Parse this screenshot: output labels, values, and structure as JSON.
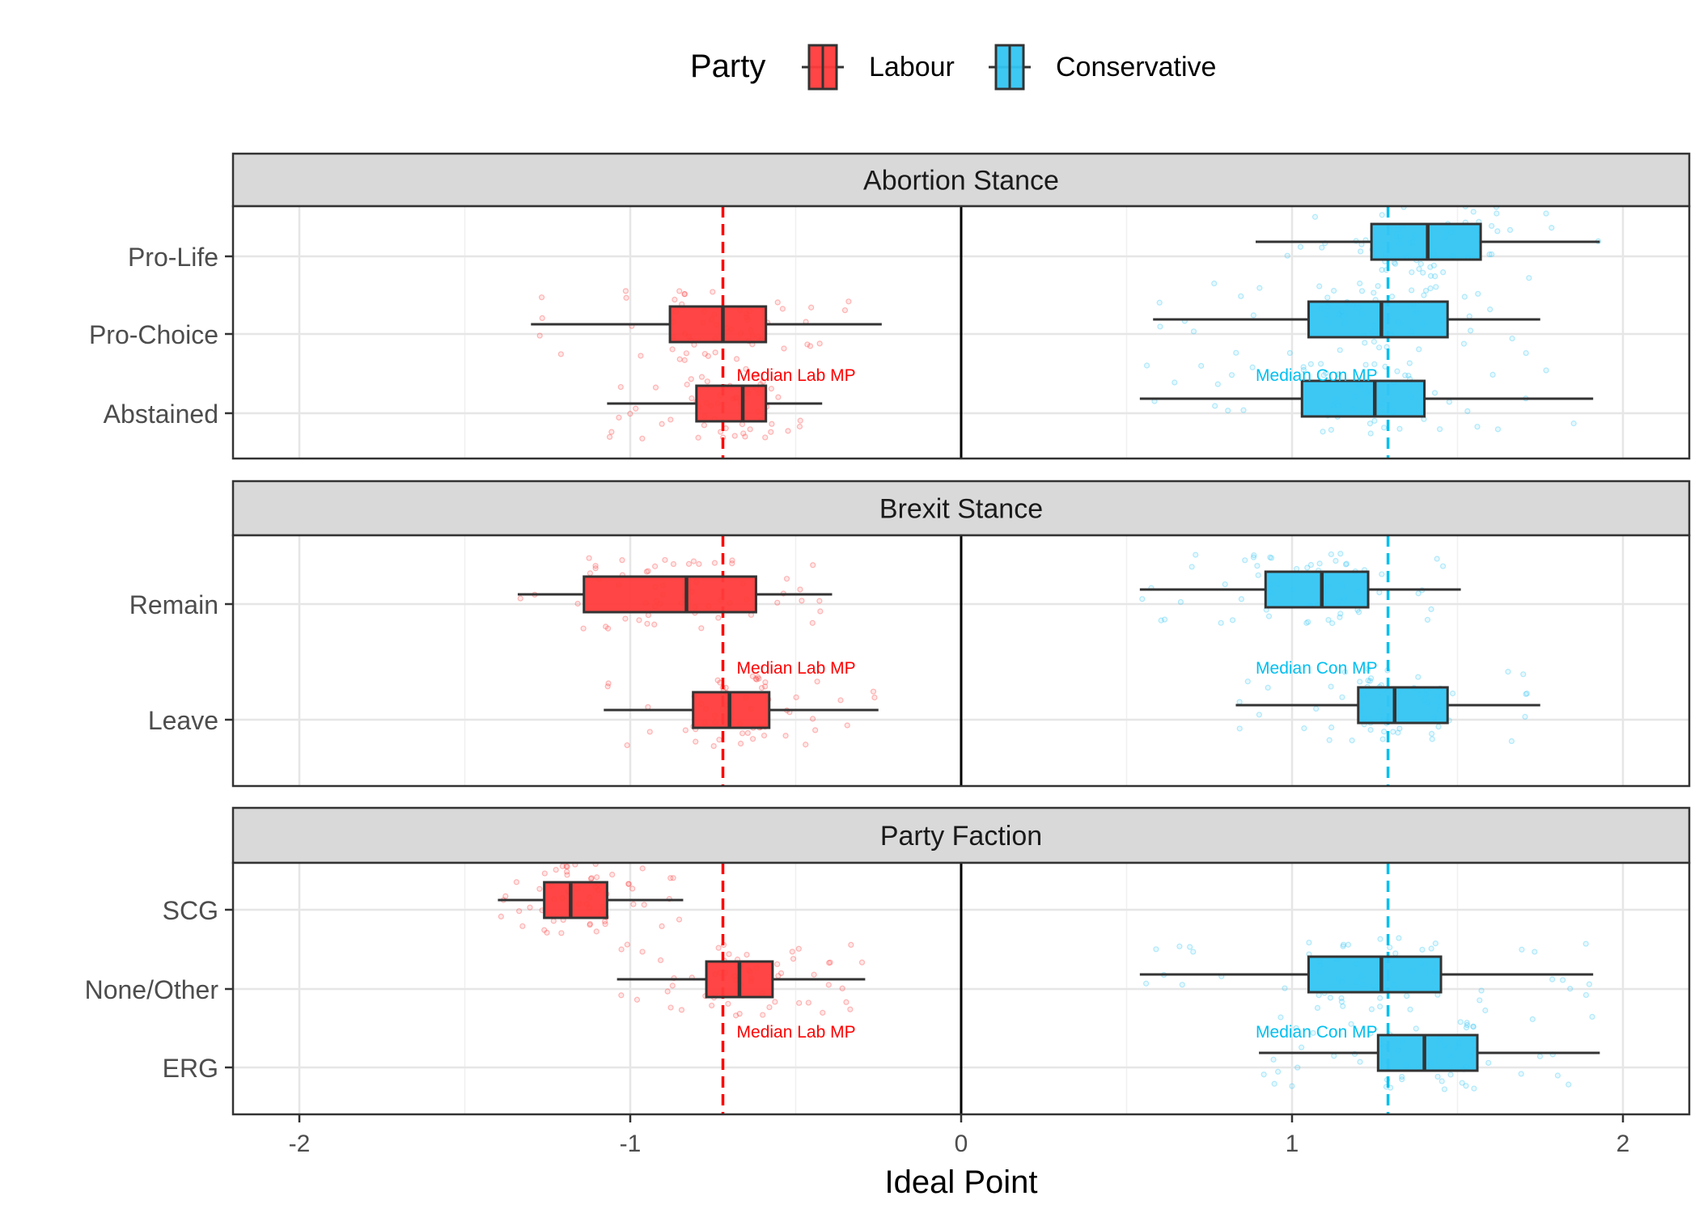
{
  "chart_data": {
    "type": "boxplot",
    "xlabel": "Ideal Point",
    "xlim": [
      -2.2,
      2.2
    ],
    "x_ticks": [
      -2,
      -1,
      0,
      1,
      2
    ],
    "x_tick_labels": [
      "-2",
      "-1",
      "0",
      "1",
      "2"
    ],
    "reference_line_x": 0,
    "grid": true,
    "legend": {
      "title": "Party",
      "position": "top",
      "entries": [
        {
          "name": "Labour",
          "color": "#FF3B3B"
        },
        {
          "name": "Conservative",
          "color": "#33C5F3"
        }
      ]
    },
    "median_lines": [
      {
        "party": "Labour",
        "x": -0.72,
        "label": "Median Lab MP",
        "color": "#FF0000"
      },
      {
        "party": "Conservative",
        "x": 1.29,
        "label": "Median Con MP",
        "color": "#00BFEF"
      }
    ],
    "panels": [
      {
        "title": "Abortion Stance",
        "categories": [
          "Pro-Life",
          "Pro-Choice",
          "Abstained"
        ],
        "boxes": [
          {
            "category": "Pro-Life",
            "party": "Conservative",
            "min": 0.89,
            "q1": 1.24,
            "median": 1.41,
            "q3": 1.57,
            "max": 1.93
          },
          {
            "category": "Pro-Choice",
            "party": "Labour",
            "min": -1.3,
            "q1": -0.88,
            "median": -0.72,
            "q3": -0.59,
            "max": -0.24
          },
          {
            "category": "Pro-Choice",
            "party": "Conservative",
            "min": 0.58,
            "q1": 1.05,
            "median": 1.27,
            "q3": 1.47,
            "max": 1.75
          },
          {
            "category": "Abstained",
            "party": "Labour",
            "min": -1.07,
            "q1": -0.8,
            "median": -0.66,
            "q3": -0.59,
            "max": -0.42
          },
          {
            "category": "Abstained",
            "party": "Conservative",
            "min": 0.54,
            "q1": 1.03,
            "median": 1.25,
            "q3": 1.4,
            "max": 1.91
          }
        ],
        "median_label_category": "Abstained"
      },
      {
        "title": "Brexit Stance",
        "categories": [
          "Remain",
          "Leave"
        ],
        "boxes": [
          {
            "category": "Remain",
            "party": "Labour",
            "min": -1.34,
            "q1": -1.14,
            "median": -0.83,
            "q3": -0.62,
            "max": -0.39
          },
          {
            "category": "Remain",
            "party": "Conservative",
            "min": 0.54,
            "q1": 0.92,
            "median": 1.09,
            "q3": 1.23,
            "max": 1.51
          },
          {
            "category": "Leave",
            "party": "Labour",
            "min": -1.08,
            "q1": -0.81,
            "median": -0.7,
            "q3": -0.58,
            "max": -0.25
          },
          {
            "category": "Leave",
            "party": "Conservative",
            "min": 0.83,
            "q1": 1.2,
            "median": 1.31,
            "q3": 1.47,
            "max": 1.75
          }
        ],
        "median_label_category": "Leave"
      },
      {
        "title": "Party Faction",
        "categories": [
          "SCG",
          "None/Other",
          "ERG"
        ],
        "boxes": [
          {
            "category": "SCG",
            "party": "Labour",
            "min": -1.4,
            "q1": -1.26,
            "median": -1.18,
            "q3": -1.07,
            "max": -0.84
          },
          {
            "category": "None/Other",
            "party": "Labour",
            "min": -1.04,
            "q1": -0.77,
            "median": -0.67,
            "q3": -0.57,
            "max": -0.29
          },
          {
            "category": "None/Other",
            "party": "Conservative",
            "min": 0.54,
            "q1": 1.05,
            "median": 1.27,
            "q3": 1.45,
            "max": 1.91
          },
          {
            "category": "ERG",
            "party": "Conservative",
            "min": 0.9,
            "q1": 1.26,
            "median": 1.4,
            "q3": 1.56,
            "max": 1.93
          }
        ],
        "median_label_category": "ERG"
      }
    ]
  }
}
